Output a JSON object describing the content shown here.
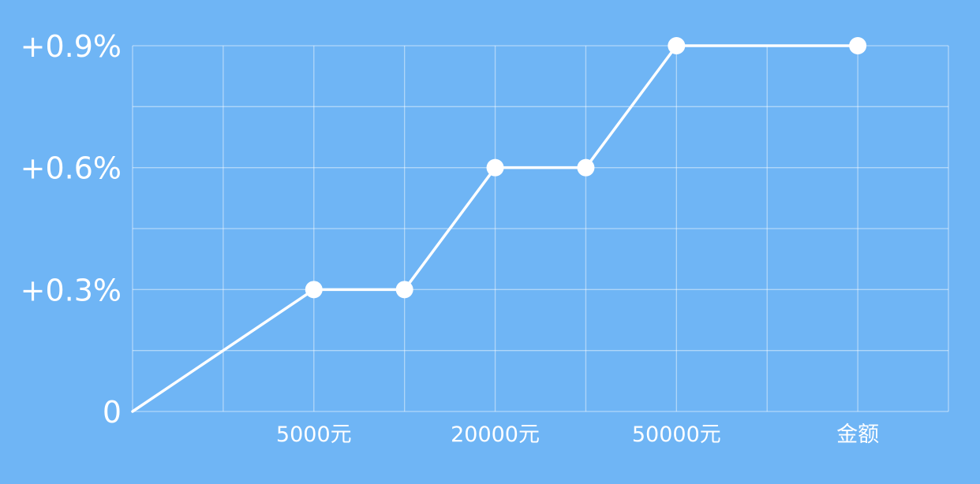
{
  "colors": {
    "background": "#6fb5f5",
    "grid": "rgba(255,255,255,0.45)",
    "line": "#ffffff",
    "text": "#ffffff"
  },
  "chart_data": {
    "type": "line",
    "grid": true,
    "xlim": [
      0,
      9
    ],
    "ylim": [
      0,
      0.9
    ],
    "yticks": [
      {
        "value": 0,
        "label": "0"
      },
      {
        "value": 0.3,
        "label": "+0.3%"
      },
      {
        "value": 0.6,
        "label": "+0.6%"
      },
      {
        "value": 0.9,
        "label": "+0.9%"
      }
    ],
    "xticks": [
      {
        "value": 2,
        "label": "5000元"
      },
      {
        "value": 4,
        "label": "20000元"
      },
      {
        "value": 6,
        "label": "50000元"
      },
      {
        "value": 8,
        "label": "金额"
      }
    ],
    "series": [
      {
        "x": [
          0,
          2,
          3,
          4,
          5,
          6,
          8
        ],
        "y": [
          0,
          0.3,
          0.3,
          0.6,
          0.6,
          0.9,
          0.9
        ],
        "markers": [
          false,
          true,
          true,
          true,
          true,
          true,
          true
        ]
      }
    ]
  }
}
